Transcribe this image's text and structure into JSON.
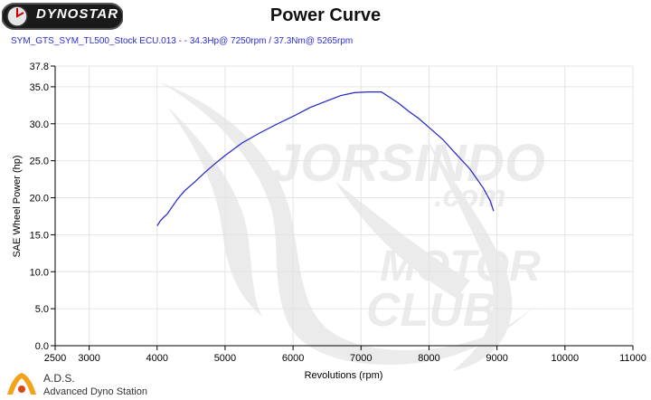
{
  "header": {
    "brand": "DYNOSTAR",
    "title": "Power Curve",
    "subtitle": "SYM_GTS_SYM_TL500_Stock ECU.013 -  - 34.3Hp@ 7250rpm / 37.3Nm@ 5265rpm"
  },
  "footer": {
    "ads_title": "A.D.S.",
    "ads_subtitle": "Advanced Dyno Station"
  },
  "chart_data": {
    "type": "line",
    "title": "Power Curve",
    "xlabel": "Revolutions (rpm)",
    "ylabel": "SAE Wheel Power (hp)",
    "xlim": [
      2500,
      11000
    ],
    "ylim": [
      0,
      37.8
    ],
    "xticks": [
      2500,
      3000,
      4000,
      5000,
      6000,
      7000,
      8000,
      9000,
      10000,
      11000
    ],
    "yticks": [
      0.0,
      5.0,
      10.0,
      15.0,
      20.0,
      25.0,
      30.0,
      35.0,
      37.8
    ],
    "xtick_labels": [
      "2500",
      "3000",
      "4000",
      "5000",
      "6000",
      "7000",
      "8000",
      "9000",
      "10000",
      "11000"
    ],
    "ytick_labels": [
      "0.0",
      "5.0",
      "10.0",
      "15.0",
      "20.0",
      "25.0",
      "30.0",
      "35.0",
      "37.8"
    ],
    "grid": true,
    "line_color": "#2222cc",
    "series": [
      {
        "x": [
          4000,
          4050,
          4100,
          4150,
          4200,
          4300,
          4400,
          4550,
          4700,
          4850,
          5000,
          5250,
          5500,
          5750,
          6000,
          6250,
          6500,
          6700,
          6900,
          7100,
          7250,
          7300,
          7400,
          7550,
          7700,
          7850,
          8000,
          8200,
          8400,
          8600,
          8800,
          8900,
          8950
        ],
        "y": [
          16.2,
          16.9,
          17.4,
          17.8,
          18.5,
          19.8,
          20.9,
          22.1,
          23.4,
          24.6,
          25.7,
          27.4,
          28.7,
          29.9,
          31.0,
          32.2,
          33.1,
          33.8,
          34.2,
          34.3,
          34.3,
          34.3,
          33.7,
          32.8,
          31.7,
          30.7,
          29.5,
          27.9,
          25.9,
          23.9,
          21.3,
          19.6,
          18.2
        ]
      }
    ]
  }
}
